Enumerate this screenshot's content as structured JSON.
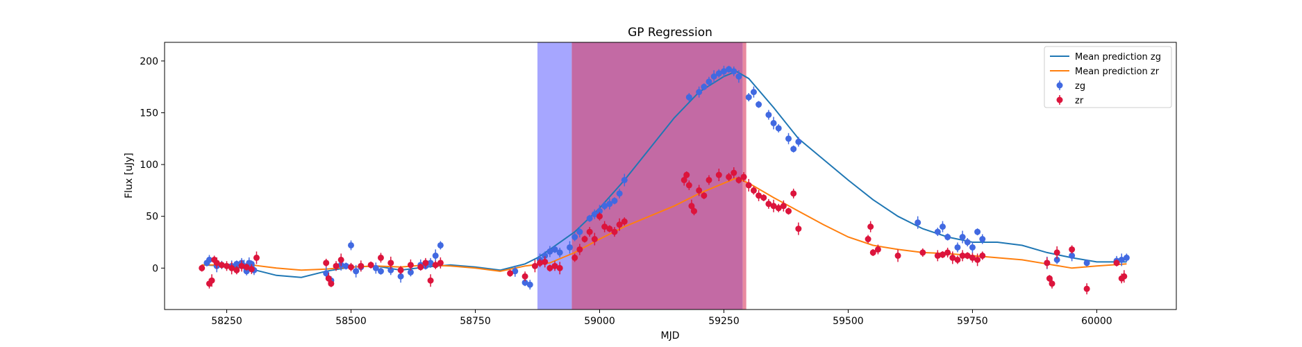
{
  "chart_data": {
    "type": "scatter",
    "title": "GP Regression",
    "xlabel": "MJD",
    "ylabel": "Flux [uJy]",
    "xlim": [
      58125,
      60160
    ],
    "ylim": [
      -40,
      218
    ],
    "xticks": [
      58250,
      58500,
      58750,
      59000,
      59250,
      59500,
      59750,
      60000
    ],
    "yticks": [
      0,
      50,
      100,
      150,
      200
    ],
    "grid": false,
    "legend": {
      "placement": "top-right",
      "entries": [
        "Mean prediction zg",
        "Mean prediction zr",
        "zg",
        "zr"
      ]
    },
    "spans": [
      {
        "x0": 58875,
        "x1": 58944,
        "color": "#a6a6ff"
      },
      {
        "x0": 58944,
        "x1": 59288,
        "color": "#c36aa4"
      },
      {
        "x0": 59288,
        "x1": 59295,
        "color": "#e88aa0"
      }
    ],
    "colors": {
      "zg_line": "#1f77b4",
      "zr_line": "#ff7f0e",
      "zg_points": "#4169e1",
      "zr_points": "#dc143c"
    },
    "series": [
      {
        "name": "Mean prediction zg",
        "kind": "line",
        "x": [
          58200,
          58250,
          58300,
          58350,
          58400,
          58450,
          58500,
          58550,
          58600,
          58650,
          58700,
          58750,
          58800,
          58850,
          58875,
          58900,
          58950,
          59000,
          59050,
          59100,
          59150,
          59200,
          59250,
          59275,
          59300,
          59350,
          59400,
          59450,
          59500,
          59550,
          59600,
          59650,
          59700,
          59750,
          59800,
          59850,
          59900,
          59950,
          60000,
          60060
        ],
        "y": [
          3,
          2,
          -1,
          -7,
          -9,
          -3,
          1,
          2,
          -2,
          1,
          3,
          1,
          -2,
          4,
          10,
          18,
          35,
          58,
          85,
          115,
          145,
          170,
          185,
          190,
          183,
          155,
          125,
          105,
          85,
          66,
          50,
          38,
          30,
          25,
          25,
          22,
          15,
          10,
          6,
          6
        ]
      },
      {
        "name": "Mean prediction zr",
        "kind": "line",
        "x": [
          58200,
          58250,
          58300,
          58350,
          58400,
          58450,
          58500,
          58550,
          58600,
          58650,
          58700,
          58750,
          58800,
          58850,
          58900,
          58950,
          59000,
          59050,
          59100,
          59150,
          59200,
          59250,
          59275,
          59300,
          59350,
          59400,
          59450,
          59500,
          59550,
          59600,
          59650,
          59700,
          59750,
          59800,
          59850,
          59900,
          59950,
          60000,
          60060
        ],
        "y": [
          3,
          3,
          3,
          0,
          -2,
          -1,
          1,
          2,
          1,
          3,
          2,
          0,
          -3,
          2,
          5,
          15,
          28,
          40,
          50,
          60,
          72,
          82,
          87,
          82,
          68,
          55,
          42,
          30,
          22,
          18,
          15,
          14,
          12,
          10,
          8,
          4,
          0,
          2,
          4
        ]
      },
      {
        "name": "zg",
        "kind": "points",
        "x": [
          58210,
          58215,
          58230,
          58240,
          58260,
          58270,
          58280,
          58285,
          58290,
          58295,
          58300,
          58305,
          58450,
          58460,
          58480,
          58490,
          58500,
          58510,
          58520,
          58550,
          58560,
          58580,
          58600,
          58620,
          58640,
          58650,
          58660,
          58670,
          58680,
          58830,
          58850,
          58860,
          58880,
          58890,
          58900,
          58910,
          58920,
          58940,
          58950,
          58960,
          58980,
          58990,
          59000,
          59010,
          59020,
          59030,
          59040,
          59050,
          59180,
          59200,
          59210,
          59220,
          59230,
          59240,
          59250,
          59260,
          59270,
          59280,
          59300,
          59310,
          59320,
          59340,
          59350,
          59360,
          59380,
          59390,
          59400,
          59640,
          59680,
          59690,
          59700,
          59720,
          59730,
          59740,
          59750,
          59760,
          59770,
          59900,
          59920,
          59950,
          59980,
          60040,
          60050,
          60060
        ],
        "y": [
          5,
          8,
          2,
          3,
          2,
          4,
          5,
          2,
          -3,
          5,
          4,
          -2,
          -5,
          -12,
          3,
          2,
          22,
          -3,
          1,
          0,
          -3,
          -2,
          -8,
          -4,
          3,
          2,
          5,
          12,
          22,
          -3,
          -14,
          -16,
          8,
          12,
          16,
          18,
          15,
          20,
          30,
          35,
          48,
          52,
          55,
          60,
          62,
          65,
          72,
          85,
          165,
          170,
          175,
          180,
          185,
          188,
          190,
          192,
          190,
          185,
          165,
          170,
          158,
          148,
          140,
          135,
          125,
          115,
          122,
          44,
          35,
          40,
          30,
          20,
          30,
          25,
          20,
          35,
          28,
          5,
          8,
          12,
          5,
          7,
          8,
          10
        ]
      },
      {
        "name": "zr",
        "kind": "points",
        "x": [
          58200,
          58215,
          58220,
          58225,
          58230,
          58240,
          58250,
          58260,
          58270,
          58280,
          58290,
          58300,
          58310,
          58450,
          58455,
          58460,
          58470,
          58480,
          58500,
          58520,
          58540,
          58560,
          58580,
          58600,
          58620,
          58640,
          58650,
          58660,
          58670,
          58680,
          58820,
          58850,
          58870,
          58880,
          58890,
          58900,
          58910,
          58920,
          58950,
          58960,
          58970,
          58980,
          58990,
          59000,
          59010,
          59020,
          59030,
          59040,
          59050,
          59170,
          59175,
          59180,
          59185,
          59190,
          59200,
          59210,
          59220,
          59240,
          59260,
          59270,
          59280,
          59290,
          59300,
          59310,
          59320,
          59330,
          59340,
          59350,
          59360,
          59370,
          59380,
          59390,
          59400,
          59540,
          59545,
          59550,
          59560,
          59600,
          59650,
          59680,
          59690,
          59700,
          59710,
          59720,
          59730,
          59740,
          59750,
          59760,
          59770,
          59900,
          59905,
          59910,
          59920,
          59950,
          59980,
          60040,
          60050,
          60055
        ],
        "y": [
          0,
          -15,
          -12,
          8,
          5,
          3,
          2,
          0,
          -2,
          2,
          1,
          -1,
          10,
          5,
          -10,
          -15,
          2,
          8,
          1,
          2,
          3,
          10,
          5,
          -2,
          3,
          1,
          5,
          -12,
          3,
          5,
          -5,
          -8,
          2,
          5,
          6,
          0,
          2,
          0,
          10,
          18,
          28,
          35,
          28,
          50,
          40,
          38,
          35,
          42,
          45,
          85,
          90,
          80,
          60,
          55,
          75,
          70,
          85,
          90,
          88,
          92,
          85,
          88,
          80,
          75,
          70,
          68,
          62,
          60,
          58,
          60,
          55,
          72,
          38,
          28,
          40,
          15,
          18,
          12,
          15,
          12,
          13,
          15,
          10,
          8,
          12,
          12,
          10,
          8,
          12,
          5,
          -10,
          -15,
          15,
          18,
          -20,
          5,
          -10,
          -8
        ]
      }
    ]
  }
}
